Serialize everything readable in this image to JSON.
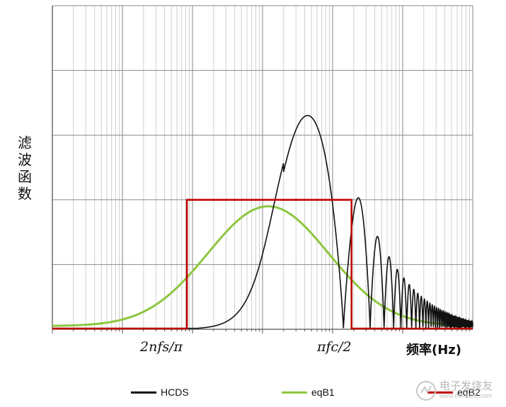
{
  "chart_data": {
    "type": "line",
    "xscale": "log",
    "x_range_decades": [
      0,
      6
    ],
    "yticks_count": 5,
    "grid": true,
    "legend_position": "bottom",
    "ylabel_chars": [
      "滤",
      "波",
      "函",
      "数"
    ],
    "xlabel": "频率(Hz)",
    "xtick_labels": [
      {
        "label": "2nfs/π",
        "decade": 1.92
      },
      {
        "label": "πfc/2",
        "decade": 4.27
      }
    ],
    "series": [
      {
        "name": "HCDS",
        "color": "#111111"
      },
      {
        "name": "eqB1",
        "color": "#8dc63f"
      },
      {
        "name": "eqB2",
        "color": "#c00000"
      }
    ]
  },
  "watermark": {
    "title": "电子发烧友",
    "subtitle": "www.elecfans.com"
  }
}
